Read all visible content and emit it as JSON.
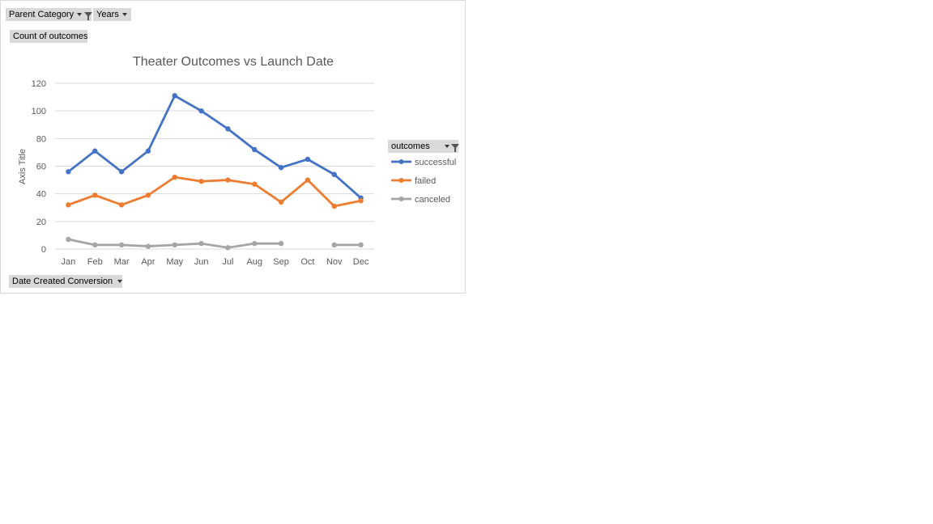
{
  "field_buttons": {
    "parent_category": "Parent Category",
    "years": "Years",
    "count_of_outcomes": "Count of outcomes",
    "date_created": "Date Created Conversion",
    "legend_header": "outcomes"
  },
  "icons": {
    "filter": "funnel-icon",
    "dropdown": "chevron-down-icon"
  },
  "chart_data": {
    "type": "line",
    "title": "Theater Outcomes vs Launch Date",
    "xlabel": "",
    "ylabel": "Axis Title",
    "ylim": [
      0,
      120
    ],
    "yticks": [
      0,
      20,
      40,
      60,
      80,
      100,
      120
    ],
    "grid": true,
    "legend_position": "right",
    "categories": [
      "Jan",
      "Feb",
      "Mar",
      "Apr",
      "May",
      "Jun",
      "Jul",
      "Aug",
      "Sep",
      "Oct",
      "Nov",
      "Dec"
    ],
    "series": [
      {
        "name": "successful",
        "color": "#4472c4",
        "values": [
          56,
          71,
          56,
          71,
          111,
          100,
          87,
          72,
          59,
          65,
          54,
          37
        ]
      },
      {
        "name": "failed",
        "color": "#ed7d31",
        "values": [
          32,
          39,
          32,
          39,
          52,
          49,
          50,
          47,
          34,
          50,
          31,
          35
        ]
      },
      {
        "name": "canceled",
        "color": "#a5a5a5",
        "values": [
          7,
          3,
          3,
          2,
          3,
          4,
          1,
          4,
          4,
          null,
          3,
          3
        ]
      }
    ]
  }
}
